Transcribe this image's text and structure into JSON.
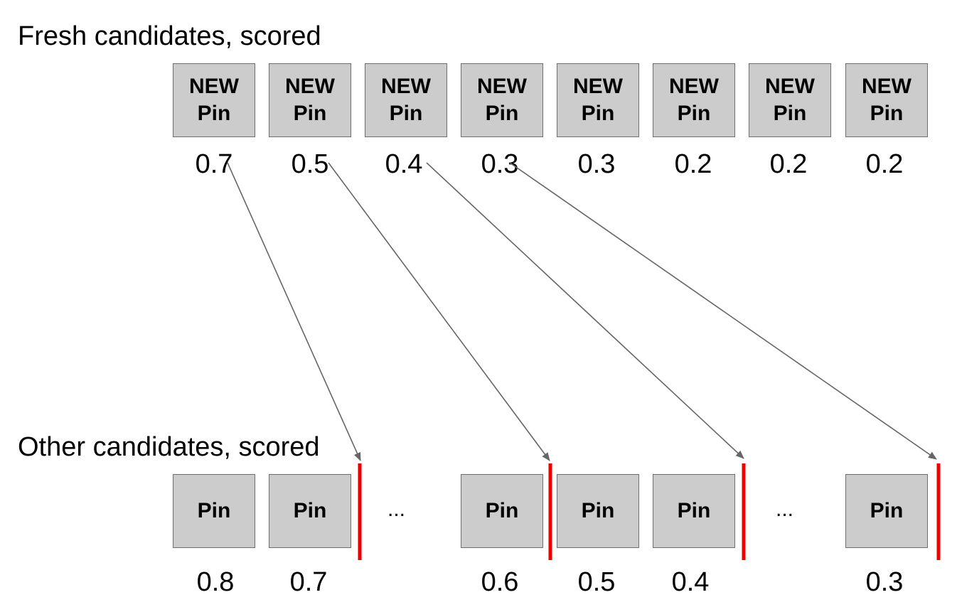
{
  "fresh": {
    "title": "Fresh candidates, scored",
    "pins": [
      {
        "line1": "NEW",
        "line2": "Pin",
        "score": "0.7"
      },
      {
        "line1": "NEW",
        "line2": "Pin",
        "score": "0.5"
      },
      {
        "line1": "NEW",
        "line2": "Pin",
        "score": "0.4"
      },
      {
        "line1": "NEW",
        "line2": "Pin",
        "score": "0.3"
      },
      {
        "line1": "NEW",
        "line2": "Pin",
        "score": "0.3"
      },
      {
        "line1": "NEW",
        "line2": "Pin",
        "score": "0.2"
      },
      {
        "line1": "NEW",
        "line2": "Pin",
        "score": "0.2"
      },
      {
        "line1": "NEW",
        "line2": "Pin",
        "score": "0.2"
      }
    ]
  },
  "other": {
    "title": "Other candidates, scored",
    "pins": [
      {
        "label": "Pin",
        "score": "0.8"
      },
      {
        "label": "Pin",
        "score": "0.7"
      },
      {
        "label": "Pin",
        "score": "0.6"
      },
      {
        "label": "Pin",
        "score": "0.5"
      },
      {
        "label": "Pin",
        "score": "0.4"
      },
      {
        "label": "Pin",
        "score": "0.3"
      }
    ],
    "ellipsis": "..."
  },
  "colors": {
    "box_fill": "#cccccc",
    "box_border": "#6e6e6e",
    "arrow": "#666666",
    "insert_marker": "#ee0000"
  }
}
